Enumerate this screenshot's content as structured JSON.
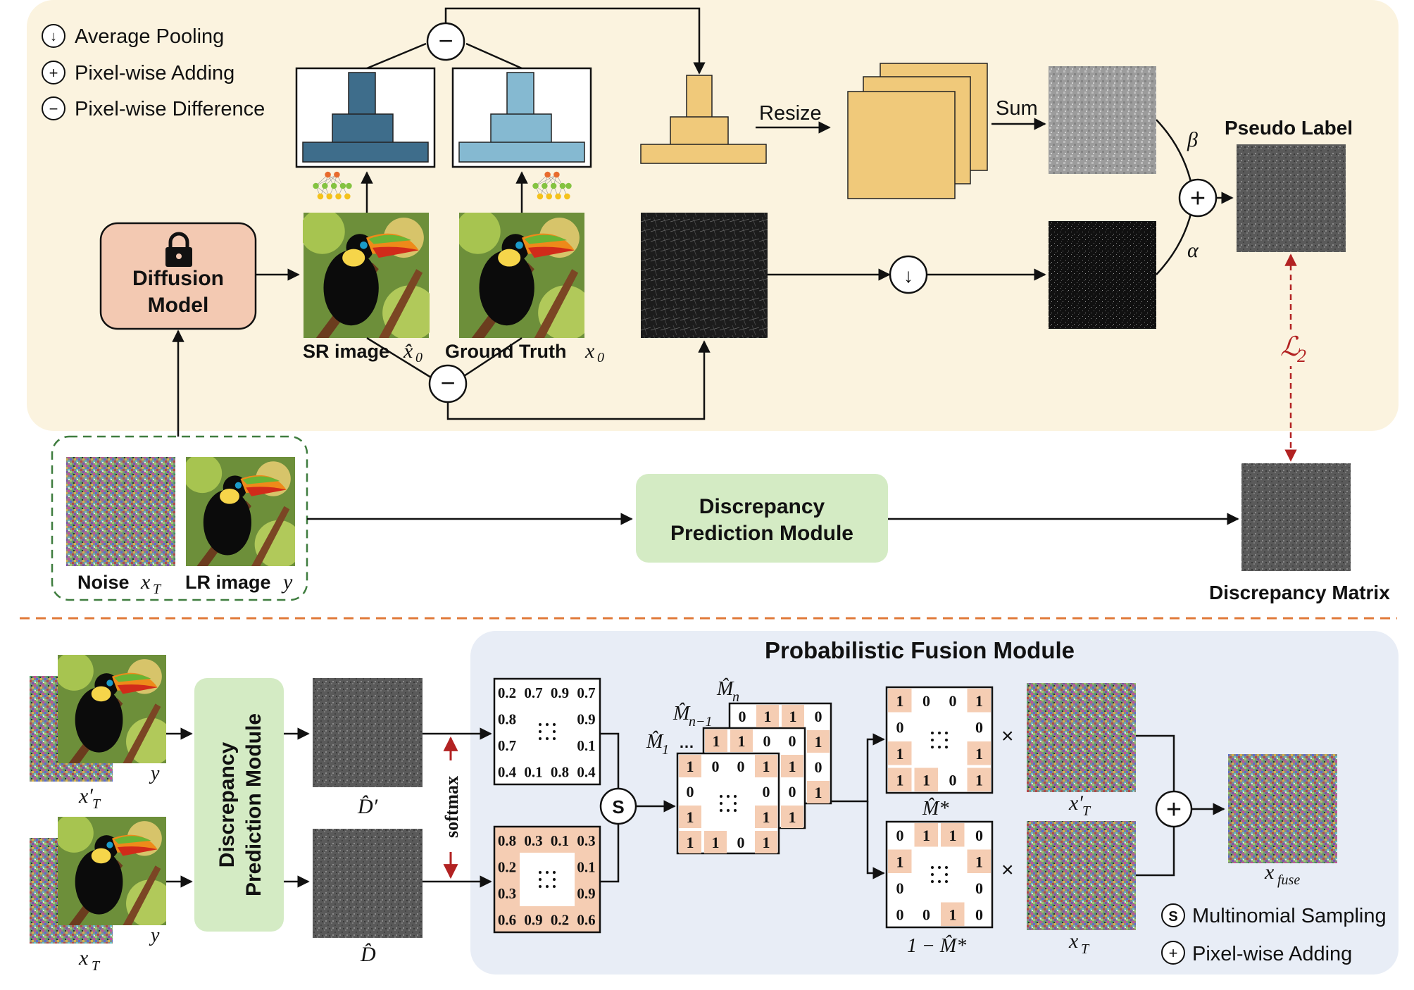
{
  "legend_top": {
    "avg_pool": "Average Pooling",
    "add": "Pixel-wise Adding",
    "diff": "Pixel-wise Difference"
  },
  "diffusion": {
    "line1": "Diffusion",
    "line2": "Model"
  },
  "sr_label": "SR image",
  "sr_math": "x̂",
  "sr_sub": "0",
  "gt_label": "Ground Truth",
  "gt_math": "x",
  "gt_sub": "0",
  "resize": "Resize",
  "sum": "Sum",
  "beta": "β",
  "alpha": "α",
  "pseudo_label": "Pseudo Label",
  "l2": "ℒ",
  "l2_sub": "2",
  "noise_label": "Noise",
  "noise_math": "x",
  "noise_sub": "T",
  "lr_label": "LR image",
  "lr_math": "y",
  "dpm_line1": "Discrepancy",
  "dpm_line2": "Prediction Module",
  "disc_matrix": "Discrepancy Matrix",
  "pfm_title": "Probabilistic Fusion Module",
  "dpm_vert_line1": "Discrepancy",
  "dpm_vert_line2": "Prediction Module",
  "softmax": "softmax",
  "y": "y",
  "xT_prime": "x′",
  "T": "T",
  "D_prime": "D̂′",
  "D_hat": "D̂",
  "matrix_top": [
    [
      "0.2",
      "0.7",
      "0.9",
      "0.7"
    ],
    [
      "0.8",
      "",
      "",
      "0.9"
    ],
    [
      "0.7",
      "",
      "",
      "0.1"
    ],
    [
      "0.4",
      "0.1",
      "0.8",
      "0.4"
    ]
  ],
  "matrix_bottom": [
    [
      "0.8",
      "0.3",
      "0.1",
      "0.3"
    ],
    [
      "0.2",
      "",
      "",
      "0.1"
    ],
    [
      "0.3",
      "",
      "",
      "0.9"
    ],
    [
      "0.6",
      "0.9",
      "0.2",
      "0.6"
    ]
  ],
  "ellipsis": "…",
  "ellipsis_dots": "···",
  "S": "S",
  "plus": "+",
  "minus": "−",
  "down": "↓",
  "times": "×",
  "M_n": "M̂",
  "M_n_sub": "n",
  "M_n1_sub": "n−1",
  "M_1_sub": "1",
  "mask_front": [
    [
      "1",
      "0",
      "0",
      "1"
    ],
    [
      "0",
      "",
      "",
      "0"
    ],
    [
      "1",
      "",
      "",
      "1"
    ],
    [
      "1",
      "1",
      "0",
      "1"
    ]
  ],
  "mask_mid": [
    [
      "1",
      "1",
      "0",
      "0"
    ],
    [
      "",
      "",
      "",
      ""
    ],
    [
      "",
      "",
      "",
      ""
    ],
    [
      "",
      "",
      "",
      ""
    ]
  ],
  "mask_back": [
    [
      "0",
      "1",
      "1",
      "0"
    ],
    [
      "",
      "",
      "",
      "1"
    ],
    [
      "",
      "",
      "",
      "0"
    ],
    [
      "",
      "",
      "",
      "1"
    ]
  ],
  "mask_mid_right": [
    "1",
    "1",
    "0",
    "1"
  ],
  "mstar": [
    [
      "1",
      "0",
      "0",
      "1"
    ],
    [
      "0",
      "",
      "",
      "0"
    ],
    [
      "1",
      "",
      "",
      "1"
    ],
    [
      "1",
      "1",
      "0",
      "1"
    ]
  ],
  "mstar_inv": [
    [
      "0",
      "1",
      "1",
      "0"
    ],
    [
      "1",
      "",
      "",
      "1"
    ],
    [
      "0",
      "",
      "",
      "0"
    ],
    [
      "0",
      "0",
      "1",
      "0"
    ]
  ],
  "mstar_label": "M̂*",
  "one_minus_mstar": "1 − M̂*",
  "x_fuse": "x",
  "x_fuse_sub": "fuse",
  "legend_bottom": {
    "sampling": "Multinomial Sampling",
    "add": "Pixel-wise Adding"
  },
  "colors": {
    "top_panel": "#fbf3df",
    "bottom_panel": "#e8edf6",
    "diffusion_box": "#f3c9b2",
    "dpm_box": "#d4ebc4",
    "pyramid_dark": "#3e6d8b",
    "pyramid_light": "#85b9d1",
    "pyramid_gold": "#f0c97a",
    "cell_highlight": "#f5cdb3",
    "dashed_separator": "#e07a3a",
    "l2_red": "#b22222"
  }
}
